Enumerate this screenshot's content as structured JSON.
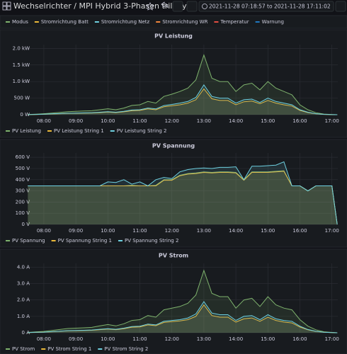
{
  "header": {
    "title": "Wechselrichter / MPI Hybrid 3-Phasen trilobyte",
    "time_range": "2021-11-28 07:18:57 to 2021-11-28 17:11:02"
  },
  "top_legend": [
    {
      "name": "Modus",
      "color": "#7eb26d"
    },
    {
      "name": "Stromrichtung Batt",
      "color": "#eab839"
    },
    {
      "name": "Stromrichtung Netz",
      "color": "#6ed0e0"
    },
    {
      "name": "Stromrichtung WR",
      "color": "#ef843c"
    },
    {
      "name": "Temperatur",
      "color": "#e24d42"
    },
    {
      "name": "Warnung",
      "color": "#1f78c1"
    }
  ],
  "chart_data": [
    {
      "type": "line",
      "title": "PV Leistung",
      "x": [
        "07:30",
        "07:45",
        "08:00",
        "08:15",
        "08:30",
        "08:45",
        "09:00",
        "09:15",
        "09:30",
        "09:45",
        "10:00",
        "10:15",
        "10:30",
        "10:45",
        "11:00",
        "11:15",
        "11:30",
        "11:45",
        "12:00",
        "12:15",
        "12:30",
        "12:45",
        "13:00",
        "13:15",
        "13:30",
        "13:45",
        "14:00",
        "14:15",
        "14:30",
        "14:45",
        "15:00",
        "15:15",
        "15:30",
        "15:45",
        "16:00",
        "16:15",
        "16:30",
        "16:45",
        "17:00",
        "17:10"
      ],
      "xlim": [
        "07:18:57",
        "17:11:02"
      ],
      "xticks": [
        "08:00",
        "09:00",
        "10:00",
        "11:00",
        "12:00",
        "13:00",
        "14:00",
        "15:00",
        "16:00",
        "17:00"
      ],
      "ylim": [
        0,
        2050
      ],
      "yticks": [
        {
          "value": 0,
          "label": "0 W"
        },
        {
          "value": 500,
          "label": "500 W"
        },
        {
          "value": 1000,
          "label": "1.0 kW"
        },
        {
          "value": 1500,
          "label": "1.5 kW"
        },
        {
          "value": 2000,
          "label": "2.0 kW"
        }
      ],
      "grid": true,
      "series": [
        {
          "name": "PV Leistung",
          "color": "#7eb26d",
          "values": [
            5,
            15,
            30,
            50,
            70,
            90,
            100,
            110,
            120,
            150,
            180,
            150,
            200,
            280,
            300,
            400,
            350,
            550,
            620,
            700,
            800,
            1050,
            1800,
            1100,
            1000,
            1000,
            700,
            900,
            950,
            750,
            1000,
            800,
            700,
            600,
            300,
            150,
            60,
            20,
            5,
            0
          ]
        },
        {
          "name": "PV Leistung String 1",
          "color": "#eab839",
          "values": [
            2,
            7,
            13,
            22,
            30,
            40,
            45,
            48,
            52,
            65,
            78,
            65,
            88,
            120,
            130,
            175,
            150,
            240,
            270,
            300,
            350,
            450,
            780,
            480,
            430,
            430,
            300,
            390,
            410,
            330,
            430,
            350,
            300,
            260,
            130,
            65,
            26,
            9,
            2,
            0
          ]
        },
        {
          "name": "PV Leistung String 2",
          "color": "#6ed0e0",
          "values": [
            3,
            8,
            15,
            25,
            35,
            45,
            50,
            55,
            60,
            75,
            90,
            75,
            100,
            140,
            150,
            200,
            175,
            275,
            310,
            350,
            400,
            520,
            900,
            550,
            500,
            500,
            350,
            450,
            470,
            370,
            500,
            400,
            350,
            300,
            150,
            75,
            30,
            10,
            3,
            0
          ]
        }
      ]
    },
    {
      "type": "line",
      "title": "PV Spannung",
      "x": [
        "07:30",
        "07:45",
        "08:00",
        "08:15",
        "08:30",
        "08:45",
        "09:00",
        "09:15",
        "09:30",
        "09:45",
        "10:00",
        "10:15",
        "10:30",
        "10:45",
        "11:00",
        "11:15",
        "11:30",
        "11:45",
        "12:00",
        "12:15",
        "12:30",
        "12:45",
        "13:00",
        "13:15",
        "13:30",
        "13:45",
        "14:00",
        "14:15",
        "14:30",
        "14:45",
        "15:00",
        "15:15",
        "15:30",
        "15:45",
        "16:00",
        "16:15",
        "16:30",
        "16:45",
        "17:00",
        "17:10"
      ],
      "xlim": [
        "07:18:57",
        "17:11:02"
      ],
      "xticks": [
        "08:00",
        "09:00",
        "10:00",
        "11:00",
        "12:00",
        "13:00",
        "14:00",
        "15:00",
        "16:00",
        "17:00"
      ],
      "ylim": [
        0,
        620
      ],
      "yticks": [
        {
          "value": 0,
          "label": "0 V"
        },
        {
          "value": 100,
          "label": "100 V"
        },
        {
          "value": 200,
          "label": "200 V"
        },
        {
          "value": 300,
          "label": "300 V"
        },
        {
          "value": 400,
          "label": "400 V"
        },
        {
          "value": 500,
          "label": "500 V"
        },
        {
          "value": 600,
          "label": "600 V"
        }
      ],
      "grid": true,
      "series": [
        {
          "name": "PV Spannung",
          "color": "#7eb26d",
          "values": [
            345,
            345,
            345,
            345,
            345,
            345,
            345,
            345,
            345,
            345,
            345,
            345,
            345,
            350,
            345,
            345,
            350,
            400,
            400,
            440,
            455,
            460,
            470,
            465,
            470,
            470,
            465,
            400,
            470,
            470,
            470,
            475,
            480,
            345,
            345,
            300,
            345,
            345,
            345,
            0
          ]
        },
        {
          "name": "PV Spannung String 1",
          "color": "#eab839",
          "values": [
            345,
            345,
            345,
            345,
            345,
            345,
            345,
            345,
            345,
            345,
            345,
            345,
            345,
            345,
            345,
            345,
            345,
            395,
            395,
            435,
            450,
            455,
            465,
            460,
            465,
            465,
            460,
            395,
            465,
            465,
            465,
            470,
            475,
            345,
            345,
            300,
            345,
            345,
            345,
            0
          ]
        },
        {
          "name": "PV Spannung String 2",
          "color": "#6ed0e0",
          "values": [
            345,
            345,
            345,
            345,
            345,
            345,
            345,
            345,
            345,
            345,
            380,
            375,
            400,
            360,
            380,
            345,
            400,
            420,
            410,
            470,
            490,
            500,
            505,
            500,
            510,
            510,
            515,
            400,
            520,
            520,
            525,
            530,
            560,
            345,
            345,
            300,
            345,
            345,
            345,
            0
          ]
        }
      ]
    },
    {
      "type": "line",
      "title": "PV Strom",
      "x": [
        "07:30",
        "07:45",
        "08:00",
        "08:15",
        "08:30",
        "08:45",
        "09:00",
        "09:15",
        "09:30",
        "09:45",
        "10:00",
        "10:15",
        "10:30",
        "10:45",
        "11:00",
        "11:15",
        "11:30",
        "11:45",
        "12:00",
        "12:15",
        "12:30",
        "12:45",
        "13:00",
        "13:15",
        "13:30",
        "13:45",
        "14:00",
        "14:15",
        "14:30",
        "14:45",
        "15:00",
        "15:15",
        "15:30",
        "15:45",
        "16:00",
        "16:15",
        "16:30",
        "16:45",
        "17:00",
        "17:10"
      ],
      "xlim": [
        "07:18:57",
        "17:11:02"
      ],
      "xticks": [
        "08:00",
        "09:00",
        "10:00",
        "11:00",
        "12:00",
        "13:00",
        "14:00",
        "15:00",
        "16:00",
        "17:00"
      ],
      "ylim": [
        0,
        4.1
      ],
      "yticks": [
        {
          "value": 0,
          "label": "0 A"
        },
        {
          "value": 1,
          "label": "1.0 A"
        },
        {
          "value": 2,
          "label": "2.0 A"
        },
        {
          "value": 3,
          "label": "3.0 A"
        },
        {
          "value": 4,
          "label": "4.0 A"
        }
      ],
      "grid": true,
      "series": [
        {
          "name": "PV Strom",
          "color": "#7eb26d",
          "values": [
            0.02,
            0.05,
            0.08,
            0.14,
            0.2,
            0.26,
            0.28,
            0.3,
            0.33,
            0.42,
            0.5,
            0.42,
            0.55,
            0.75,
            0.8,
            1.05,
            0.95,
            1.4,
            1.5,
            1.6,
            1.8,
            2.3,
            3.8,
            2.4,
            2.2,
            2.2,
            1.5,
            2.0,
            2.1,
            1.6,
            2.2,
            1.7,
            1.5,
            1.4,
            0.8,
            0.4,
            0.18,
            0.06,
            0.02,
            0
          ]
        },
        {
          "name": "PV Strom String 1",
          "color": "#eab839",
          "values": [
            0.01,
            0.02,
            0.04,
            0.06,
            0.09,
            0.12,
            0.13,
            0.14,
            0.15,
            0.19,
            0.23,
            0.19,
            0.25,
            0.34,
            0.36,
            0.48,
            0.43,
            0.63,
            0.68,
            0.72,
            0.8,
            1.0,
            1.7,
            1.05,
            0.95,
            0.95,
            0.65,
            0.85,
            0.9,
            0.7,
            0.95,
            0.75,
            0.65,
            0.6,
            0.35,
            0.18,
            0.08,
            0.03,
            0.01,
            0
          ]
        },
        {
          "name": "PV Strom String 2",
          "color": "#6ed0e0",
          "values": [
            0.01,
            0.03,
            0.04,
            0.07,
            0.1,
            0.13,
            0.14,
            0.15,
            0.17,
            0.21,
            0.25,
            0.21,
            0.28,
            0.38,
            0.4,
            0.53,
            0.48,
            0.7,
            0.75,
            0.8,
            0.9,
            1.15,
            1.9,
            1.2,
            1.1,
            1.1,
            0.75,
            1.0,
            1.05,
            0.8,
            1.1,
            0.85,
            0.75,
            0.7,
            0.4,
            0.2,
            0.09,
            0.03,
            0.01,
            0
          ]
        }
      ]
    }
  ]
}
